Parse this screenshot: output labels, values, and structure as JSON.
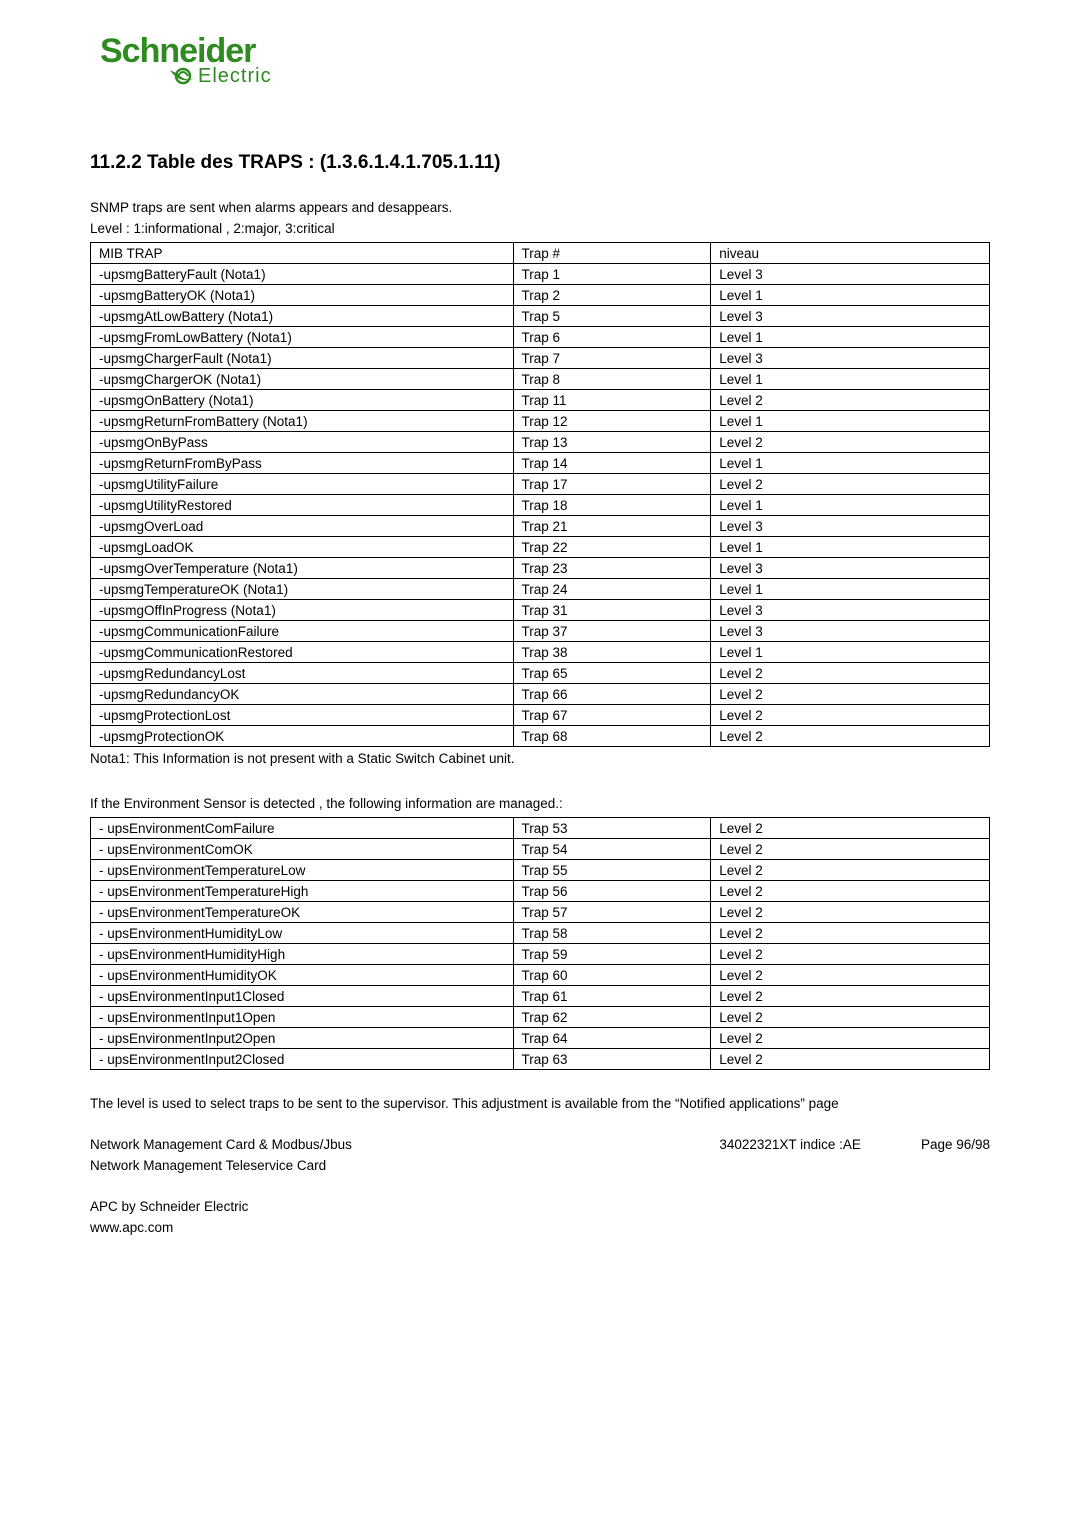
{
  "logo": {
    "brand_fill": "#2e8b1f",
    "text_top": "Schneider",
    "text_bottom": "Electric"
  },
  "section_title": "11.2.2 Table des TRAPS : (1.3.6.1.4.1.705.1.11)",
  "intro_line1": "SNMP traps are sent when alarms appears and desappears.",
  "intro_line2": "Level : 1:informational , 2:major, 3:critical",
  "table1": {
    "columns": [
      "MIB TRAP",
      "Trap #",
      "niveau"
    ],
    "rows": [
      [
        "-upsmgBatteryFault (Nota1)",
        "Trap 1",
        "Level 3"
      ],
      [
        "-upsmgBatteryOK (Nota1)",
        "Trap 2",
        "Level 1"
      ],
      [
        "-upsmgAtLowBattery (Nota1)",
        "Trap 5",
        "Level 3"
      ],
      [
        "-upsmgFromLowBattery (Nota1)",
        "Trap 6",
        "Level 1"
      ],
      [
        "-upsmgChargerFault (Nota1)",
        "Trap 7",
        "Level 3"
      ],
      [
        "-upsmgChargerOK (Nota1)",
        "Trap 8",
        "Level 1"
      ],
      [
        "-upsmgOnBattery (Nota1)",
        "Trap 11",
        "Level 2"
      ],
      [
        "-upsmgReturnFromBattery (Nota1)",
        "Trap 12",
        "Level 1"
      ],
      [
        "-upsmgOnByPass",
        "Trap 13",
        "Level 2"
      ],
      [
        "-upsmgReturnFromByPass",
        "Trap 14",
        "Level 1"
      ],
      [
        "-upsmgUtilityFailure",
        "Trap 17",
        "Level 2"
      ],
      [
        "-upsmgUtilityRestored",
        "Trap 18",
        "Level 1"
      ],
      [
        "-upsmgOverLoad",
        "Trap 21",
        "Level 3"
      ],
      [
        "-upsmgLoadOK",
        "Trap 22",
        "Level 1"
      ],
      [
        "-upsmgOverTemperature (Nota1)",
        "Trap 23",
        "Level 3"
      ],
      [
        "-upsmgTemperatureOK (Nota1)",
        "Trap 24",
        "Level 1"
      ],
      [
        "-upsmgOffInProgress (Nota1)",
        "Trap 31",
        "Level 3"
      ],
      [
        "-upsmgCommunicationFailure",
        "Trap 37",
        "Level 3"
      ],
      [
        "-upsmgCommunicationRestored",
        "Trap 38",
        "Level 1"
      ],
      [
        "-upsmgRedundancyLost",
        "Trap 65",
        "Level 2"
      ],
      [
        "-upsmgRedundancyOK",
        "Trap 66",
        "Level 2"
      ],
      [
        "-upsmgProtectionLost",
        "Trap 67",
        "Level 2"
      ],
      [
        "-upsmgProtectionOK",
        "Trap 68",
        "Level 2"
      ]
    ]
  },
  "nota1": "Nota1: This Information is not present with a Static Switch Cabinet unit.",
  "env_intro": "If the Environment Sensor is detected , the following information are managed.:",
  "table2": {
    "rows": [
      [
        "- upsEnvironmentComFailure",
        "Trap 53",
        "Level 2"
      ],
      [
        "- upsEnvironmentComOK",
        "Trap 54",
        "Level 2"
      ],
      [
        "- upsEnvironmentTemperatureLow",
        "Trap 55",
        "Level 2"
      ],
      [
        "- upsEnvironmentTemperatureHigh",
        "Trap 56",
        "Level 2"
      ],
      [
        "- upsEnvironmentTemperatureOK",
        "Trap 57",
        "Level 2"
      ],
      [
        "- upsEnvironmentHumidityLow",
        "Trap 58",
        "Level 2"
      ],
      [
        "- upsEnvironmentHumidityHigh",
        "Trap 59",
        "Level 2"
      ],
      [
        "- upsEnvironmentHumidityOK",
        "Trap 60",
        "Level 2"
      ],
      [
        "- upsEnvironmentInput1Closed",
        "Trap 61",
        "Level 2"
      ],
      [
        "- upsEnvironmentInput1Open",
        "Trap 62",
        "Level 2"
      ],
      [
        "- upsEnvironmentInput2Open",
        "Trap 64",
        "Level 2"
      ],
      [
        "- upsEnvironmentInput2Closed",
        "Trap 63",
        "Level 2"
      ]
    ]
  },
  "level_explain": "The level is used to select traps to be sent to the supervisor. This adjustment is available from the “Notified applications” page",
  "footer": {
    "line1_left": "Network Management Card & Modbus/Jbus",
    "line1_mid": "34022321XT indice :AE",
    "line1_right": "Page 96/98",
    "line2": "Network Management Teleservice Card",
    "brand": "APC by Schneider Electric",
    "url": "www.apc.com"
  }
}
